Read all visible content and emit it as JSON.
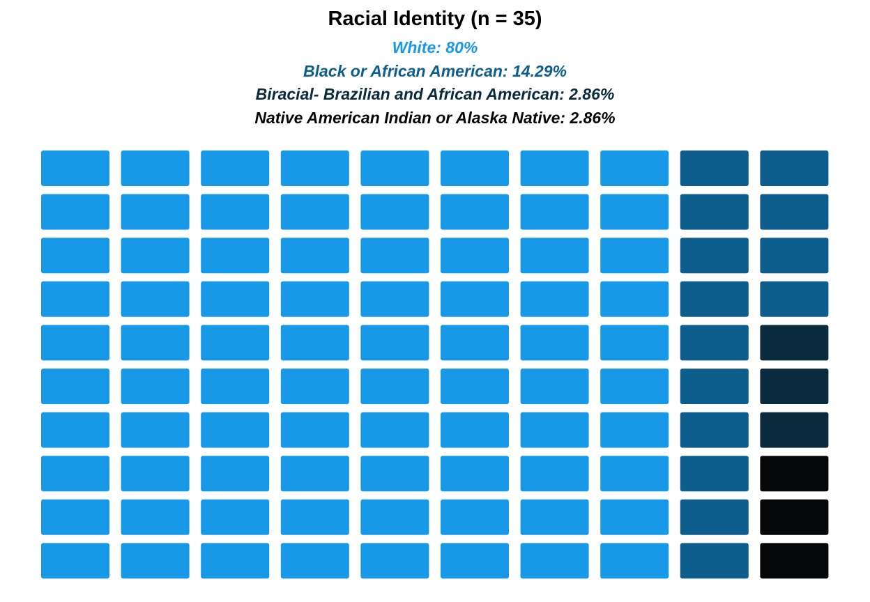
{
  "chart_data": {
    "type": "waffle",
    "title": "Racial Identity (n = 35)",
    "grid": {
      "rows": 10,
      "columns": 10,
      "fill_order": "column-major, top-to-bottom then left-to-right"
    },
    "series": [
      {
        "name": "White",
        "value": 80,
        "unit": "%",
        "label": "White: 80%",
        "color": "#1899E8",
        "cells": 80
      },
      {
        "name": "Black or African American",
        "value": 14.29,
        "unit": "%",
        "label": "Black or African American: 14.29%",
        "color": "#0D5E8C",
        "cells": 14
      },
      {
        "name": "Biracial- Brazilian and African American",
        "value": 2.86,
        "unit": "%",
        "label": "Biracial- Brazilian and African American: 2.86%",
        "color": "#0A2A3E",
        "cells": 3
      },
      {
        "name": "Native American Indian or Alaska Native",
        "value": 2.86,
        "unit": "%",
        "label": "Native American Indian or Alaska Native: 2.86%",
        "color": "#050708",
        "cells": 3
      }
    ],
    "legend_placement": "top"
  }
}
